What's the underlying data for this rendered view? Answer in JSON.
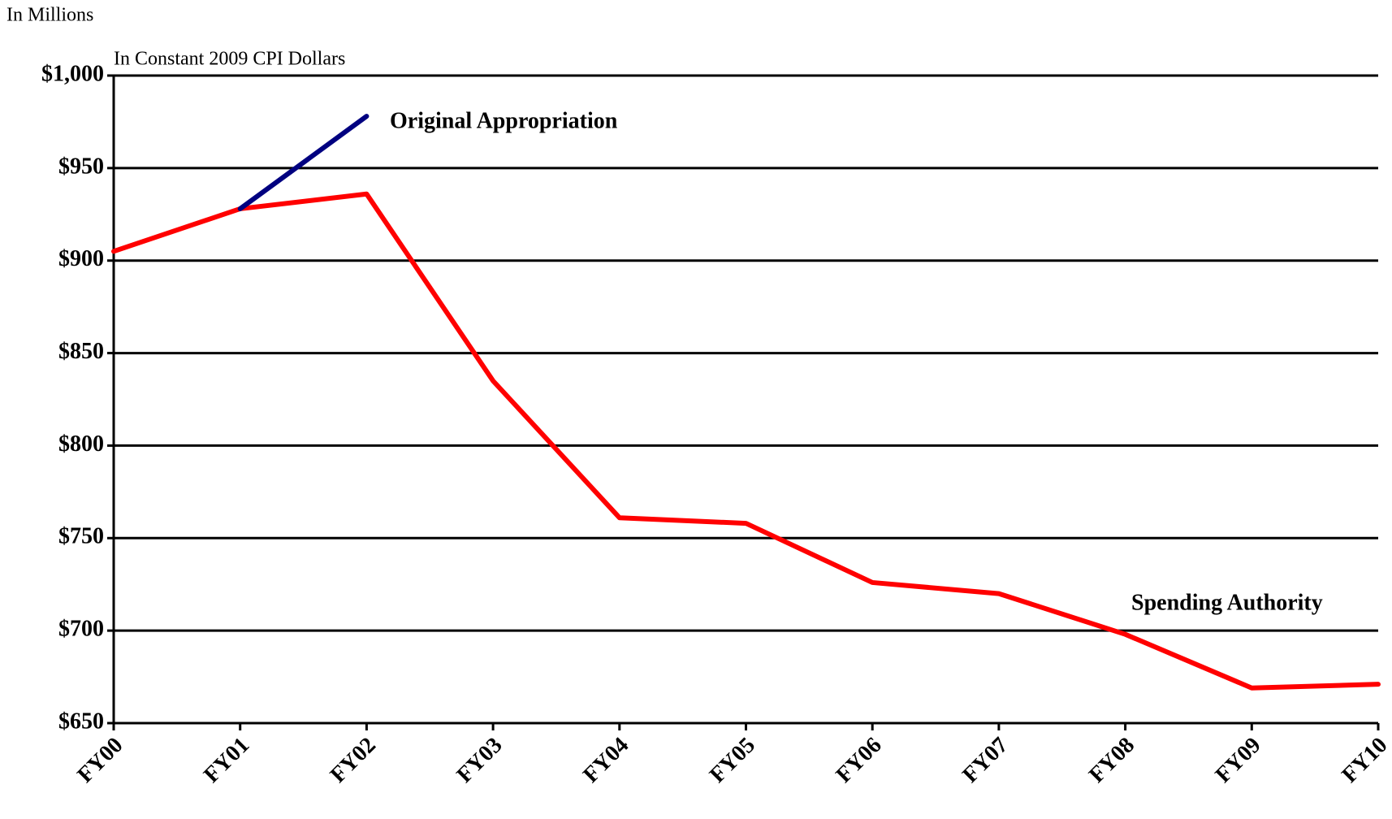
{
  "chart_data": {
    "type": "line",
    "title": "In Millions",
    "subtitle": "In Constant 2009 CPI Dollars",
    "categories": [
      "FY00",
      "FY01",
      "FY02",
      "FY03",
      "FY04",
      "FY05",
      "FY06",
      "FY07",
      "FY08",
      "FY09",
      "FY10"
    ],
    "series": [
      {
        "name": "Spending Authority",
        "color": "#ff0000",
        "values": [
          905,
          928,
          936,
          835,
          761,
          758,
          726,
          720,
          698,
          669,
          671
        ]
      },
      {
        "name": "Original Appropriation",
        "color": "#000080",
        "values": [
          null,
          928,
          978,
          null,
          null,
          null,
          null,
          null,
          null,
          null,
          null
        ]
      }
    ],
    "ylim": [
      650,
      1000
    ],
    "yticks": [
      {
        "value": 650,
        "label": "$650"
      },
      {
        "value": 700,
        "label": "$700"
      },
      {
        "value": 750,
        "label": "$750"
      },
      {
        "value": 800,
        "label": "$800"
      },
      {
        "value": 850,
        "label": "$850"
      },
      {
        "value": 900,
        "label": "$900"
      },
      {
        "value": 950,
        "label": "$950"
      },
      {
        "value": 1000,
        "label": "$1,000"
      }
    ],
    "grid": true
  }
}
